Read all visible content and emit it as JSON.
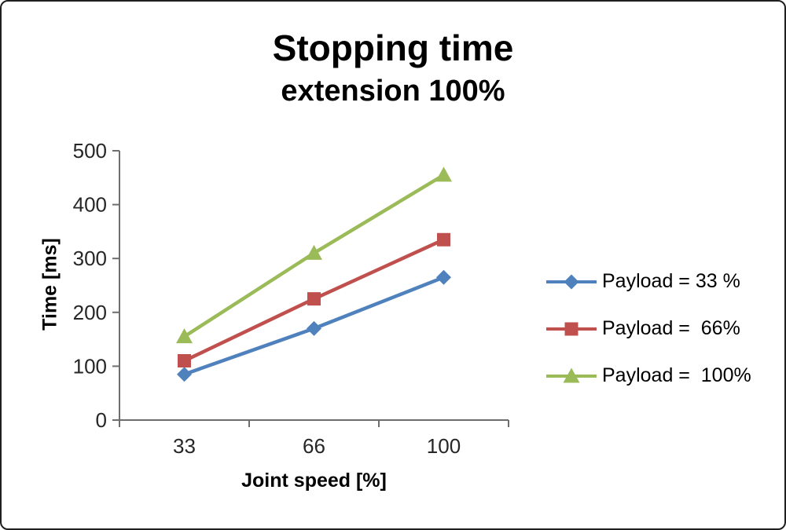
{
  "chart_data": {
    "type": "line",
    "title": "Stopping time",
    "subtitle": "extension 100%",
    "xlabel": "Joint speed [%]",
    "ylabel": "Time [ms]",
    "categories": [
      "33",
      "66",
      "100"
    ],
    "series": [
      {
        "name": "Payload = 33 %",
        "marker": "diamond",
        "color": "#4F81BD",
        "values": [
          85,
          170,
          265
        ]
      },
      {
        "name": "Payload =  66%",
        "marker": "square",
        "color": "#C0504D",
        "values": [
          110,
          225,
          335
        ]
      },
      {
        "name": "Payload =  100%",
        "marker": "triangle",
        "color": "#9BBB59",
        "values": [
          155,
          310,
          455
        ]
      }
    ],
    "ylim": [
      0,
      500
    ],
    "ytick_step": 100,
    "grid": false,
    "legend_position": "right",
    "axis_color": "#6e6e6e"
  }
}
